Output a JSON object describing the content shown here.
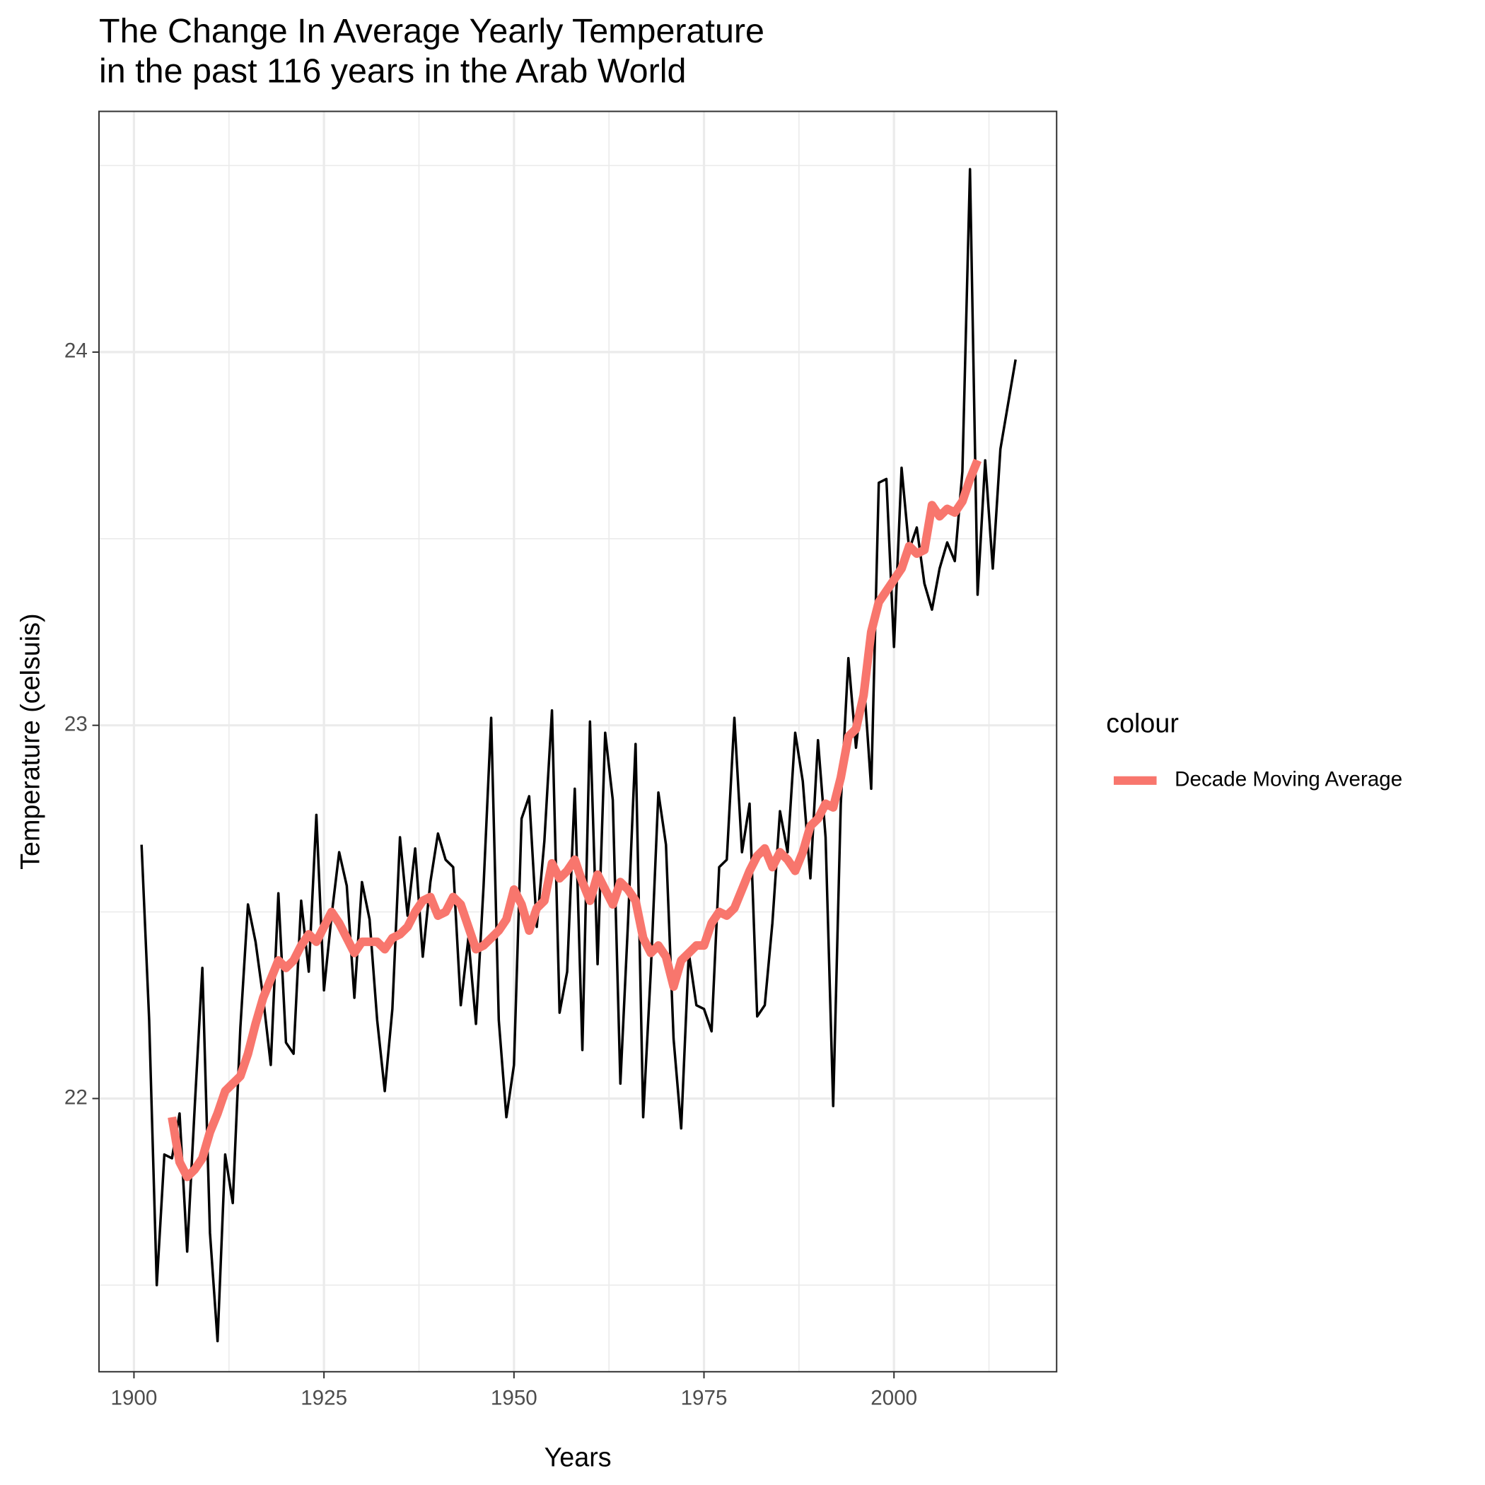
{
  "chart_data": {
    "type": "line",
    "title": [
      "The Change In Average Yearly Temperature",
      "in the past 116 years in the Arab World"
    ],
    "x_label": "Years",
    "y_label": "Temperature (celsuis)",
    "legend_title": "colour",
    "legend_position": "right",
    "grid": true,
    "x": [
      1901,
      1902,
      1903,
      1904,
      1905,
      1906,
      1907,
      1908,
      1909,
      1910,
      1911,
      1912,
      1913,
      1914,
      1915,
      1916,
      1917,
      1918,
      1919,
      1920,
      1921,
      1922,
      1923,
      1924,
      1925,
      1926,
      1927,
      1928,
      1929,
      1930,
      1931,
      1932,
      1933,
      1934,
      1935,
      1936,
      1937,
      1938,
      1939,
      1940,
      1941,
      1942,
      1943,
      1944,
      1945,
      1946,
      1947,
      1948,
      1949,
      1950,
      1951,
      1952,
      1953,
      1954,
      1955,
      1956,
      1957,
      1958,
      1959,
      1960,
      1961,
      1962,
      1963,
      1964,
      1965,
      1966,
      1967,
      1968,
      1969,
      1970,
      1971,
      1972,
      1973,
      1974,
      1975,
      1976,
      1977,
      1978,
      1979,
      1980,
      1981,
      1982,
      1983,
      1984,
      1985,
      1986,
      1987,
      1988,
      1989,
      1990,
      1991,
      1992,
      1993,
      1994,
      1995,
      1996,
      1997,
      1998,
      1999,
      2000,
      2001,
      2002,
      2003,
      2004,
      2005,
      2006,
      2007,
      2008,
      2009,
      2010,
      2011,
      2012,
      2013,
      2014,
      2015,
      2016
    ],
    "series": [
      {
        "color": "#000000",
        "values": [
          22.68,
          22.21,
          21.5,
          21.85,
          21.84,
          21.96,
          21.59,
          21.98,
          22.35,
          21.64,
          21.35,
          21.85,
          21.72,
          22.19,
          22.52,
          22.42,
          22.27,
          22.09,
          22.55,
          22.15,
          22.12,
          22.53,
          22.34,
          22.76,
          22.29,
          22.49,
          22.66,
          22.57,
          22.27,
          22.58,
          22.48,
          22.21,
          22.02,
          22.24,
          22.7,
          22.49,
          22.67,
          22.38,
          22.58,
          22.71,
          22.64,
          22.62,
          22.25,
          22.43,
          22.2,
          22.57,
          23.02,
          22.21,
          21.95,
          22.09,
          22.75,
          22.81,
          22.46,
          22.69,
          23.04,
          22.23,
          22.34,
          22.83,
          22.13,
          23.01,
          22.36,
          22.98,
          22.8,
          22.04,
          22.47,
          22.95,
          21.95,
          22.34,
          22.82,
          22.68,
          22.16,
          21.92,
          22.39,
          22.25,
          22.24,
          22.18,
          22.62,
          22.64,
          23.02,
          22.66,
          22.79,
          22.22,
          22.25,
          22.47,
          22.77,
          22.66,
          22.98,
          22.85,
          22.59,
          22.96,
          22.7,
          21.98,
          22.79,
          23.18,
          22.94,
          23.13,
          22.83,
          23.65,
          23.66,
          23.21,
          23.69,
          23.47,
          23.53,
          23.38,
          23.31,
          23.42,
          23.49,
          23.44,
          23.68,
          24.49,
          23.35,
          23.71,
          23.42,
          23.74,
          23.86,
          23.98
        ]
      },
      {
        "name": "Decade Moving Average",
        "color": "#f8766d",
        "values": [
          null,
          null,
          null,
          null,
          21.95,
          21.83,
          21.79,
          21.81,
          21.84,
          21.91,
          21.96,
          22.02,
          22.04,
          22.06,
          22.12,
          22.2,
          22.27,
          22.32,
          22.37,
          22.35,
          22.37,
          22.41,
          22.44,
          22.42,
          22.46,
          22.5,
          22.47,
          22.43,
          22.39,
          22.42,
          22.42,
          22.42,
          22.4,
          22.43,
          22.44,
          22.46,
          22.5,
          22.53,
          22.54,
          22.49,
          22.5,
          22.54,
          22.52,
          22.46,
          22.4,
          22.41,
          22.43,
          22.45,
          22.48,
          22.56,
          22.52,
          22.45,
          22.51,
          22.53,
          22.63,
          22.59,
          22.61,
          22.64,
          22.58,
          22.53,
          22.6,
          22.56,
          22.52,
          22.58,
          22.56,
          22.53,
          22.43,
          22.39,
          22.41,
          22.38,
          22.3,
          22.37,
          22.39,
          22.41,
          22.41,
          22.47,
          22.5,
          22.49,
          22.51,
          22.56,
          22.61,
          22.65,
          22.67,
          22.62,
          22.66,
          22.64,
          22.61,
          22.66,
          22.73,
          22.75,
          22.79,
          22.78,
          22.86,
          22.97,
          22.99,
          23.08,
          23.25,
          23.33,
          23.36,
          23.39,
          23.42,
          23.48,
          23.46,
          23.47,
          23.59,
          23.56,
          23.58,
          23.57,
          23.6,
          23.66,
          23.71,
          null,
          null,
          null,
          null,
          null
        ]
      }
    ],
    "xlim": [
      1895.4,
      2021.4
    ],
    "xticks": [
      1900,
      1925,
      1950,
      1975,
      2000
    ],
    "ylim": [
      21.268,
      24.645
    ],
    "yticks": [
      22,
      23,
      24
    ]
  }
}
